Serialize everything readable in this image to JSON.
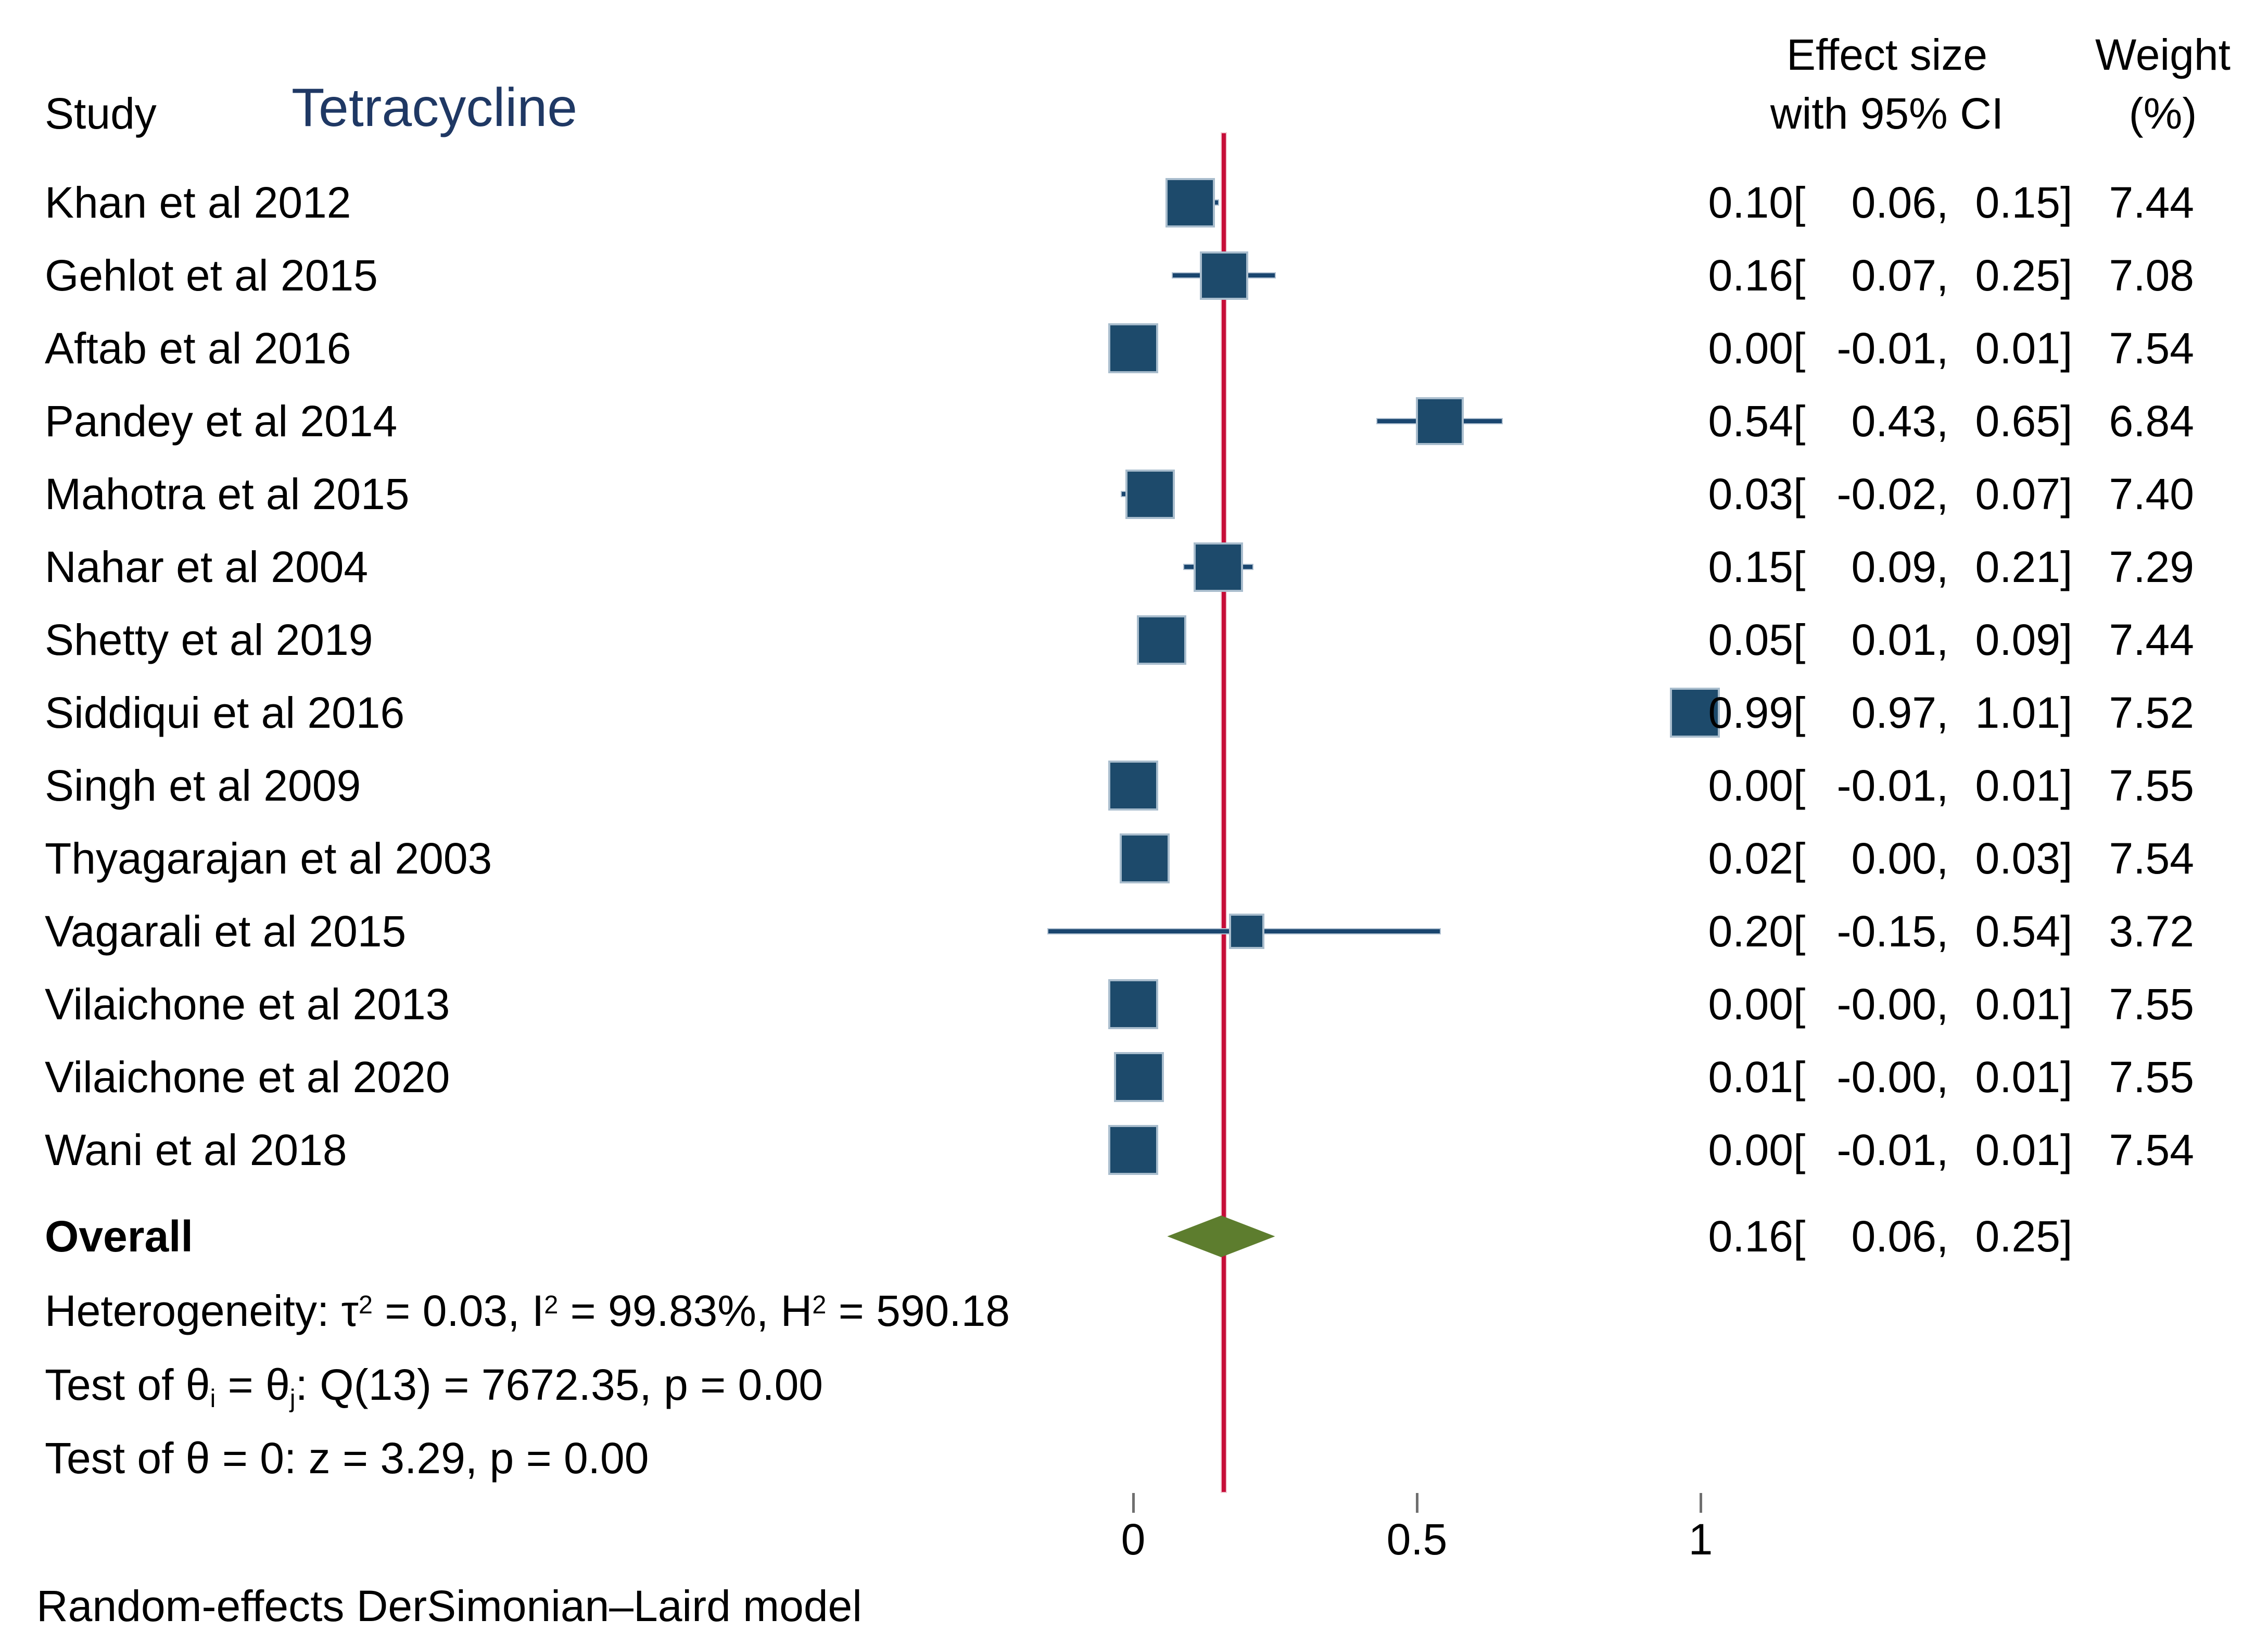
{
  "header": {
    "study_col": "Study",
    "group_title": "Tetracycline",
    "effect_col_line1": "Effect size",
    "effect_col_line2": "with 95% CI",
    "weight_col_line1": "Weight",
    "weight_col_line2": "(%)"
  },
  "chart_data": {
    "type": "forest",
    "title": "Tetracycline",
    "x_axis": {
      "ticks": [
        0,
        0.5,
        1
      ],
      "tick_labels": [
        "0",
        "0.5",
        "1"
      ],
      "range_shown": [
        -0.15,
        1.01
      ],
      "grid": false
    },
    "reference_line_value": 0.16,
    "studies": [
      {
        "label": "Khan et al 2012",
        "es": 0.1,
        "lo": 0.06,
        "hi": 0.15,
        "weight": 7.44,
        "es_str": "0.10",
        "lo_str": "0.06",
        "hi_str": "0.15",
        "weight_str": "7.44"
      },
      {
        "label": "Gehlot et al 2015",
        "es": 0.16,
        "lo": 0.07,
        "hi": 0.25,
        "weight": 7.08,
        "es_str": "0.16",
        "lo_str": "0.07",
        "hi_str": "0.25",
        "weight_str": "7.08"
      },
      {
        "label": "Aftab et al 2016",
        "es": 0.0,
        "lo": -0.01,
        "hi": 0.01,
        "weight": 7.54,
        "es_str": "0.00",
        "lo_str": "-0.01",
        "hi_str": "0.01",
        "weight_str": "7.54"
      },
      {
        "label": "Pandey et al 2014",
        "es": 0.54,
        "lo": 0.43,
        "hi": 0.65,
        "weight": 6.84,
        "es_str": "0.54",
        "lo_str": "0.43",
        "hi_str": "0.65",
        "weight_str": "6.84"
      },
      {
        "label": "Mahotra et al 2015",
        "es": 0.03,
        "lo": -0.02,
        "hi": 0.07,
        "weight": 7.4,
        "es_str": "0.03",
        "lo_str": "-0.02",
        "hi_str": "0.07",
        "weight_str": "7.40"
      },
      {
        "label": "Nahar et al 2004",
        "es": 0.15,
        "lo": 0.09,
        "hi": 0.21,
        "weight": 7.29,
        "es_str": "0.15",
        "lo_str": "0.09",
        "hi_str": "0.21",
        "weight_str": "7.29"
      },
      {
        "label": "Shetty et al 2019",
        "es": 0.05,
        "lo": 0.01,
        "hi": 0.09,
        "weight": 7.44,
        "es_str": "0.05",
        "lo_str": "0.01",
        "hi_str": "0.09",
        "weight_str": "7.44"
      },
      {
        "label": "Siddiqui et al 2016",
        "es": 0.99,
        "lo": 0.97,
        "hi": 1.01,
        "weight": 7.52,
        "es_str": "0.99",
        "lo_str": "0.97",
        "hi_str": "1.01",
        "weight_str": "7.52"
      },
      {
        "label": "Singh et al 2009",
        "es": 0.0,
        "lo": -0.01,
        "hi": 0.01,
        "weight": 7.55,
        "es_str": "0.00",
        "lo_str": "-0.01",
        "hi_str": "0.01",
        "weight_str": "7.55"
      },
      {
        "label": "Thyagarajan et al 2003",
        "es": 0.02,
        "lo": 0.0,
        "hi": 0.03,
        "weight": 7.54,
        "es_str": "0.02",
        "lo_str": "0.00",
        "hi_str": "0.03",
        "weight_str": "7.54"
      },
      {
        "label": "Vagarali et al 2015",
        "es": 0.2,
        "lo": -0.15,
        "hi": 0.54,
        "weight": 3.72,
        "es_str": "0.20",
        "lo_str": "-0.15",
        "hi_str": "0.54",
        "weight_str": "3.72"
      },
      {
        "label": "Vilaichone et al 2013",
        "es": 0.0,
        "lo": -0.004,
        "hi": 0.01,
        "weight": 7.55,
        "es_str": "0.00",
        "lo_str": "-0.00",
        "hi_str": "0.01",
        "weight_str": "7.55"
      },
      {
        "label": "Vilaichone et al 2020",
        "es": 0.01,
        "lo": -0.004,
        "hi": 0.01,
        "weight": 7.55,
        "es_str": "0.01",
        "lo_str": "-0.00",
        "hi_str": "0.01",
        "weight_str": "7.55"
      },
      {
        "label": "Wani et al 2018",
        "es": 0.0,
        "lo": -0.01,
        "hi": 0.01,
        "weight": 7.54,
        "es_str": "0.00",
        "lo_str": "-0.01",
        "hi_str": "0.01",
        "weight_str": "7.54"
      }
    ],
    "overall": {
      "label": "Overall",
      "es": 0.16,
      "lo": 0.06,
      "hi": 0.25,
      "es_str": "0.16",
      "lo_str": "0.06",
      "hi_str": "0.25"
    }
  },
  "stats": {
    "heterogeneity_segments": [
      [
        "Heterogeneity: τ",
        "n"
      ],
      [
        "2",
        "sup"
      ],
      [
        " = 0.03, I",
        "n"
      ],
      [
        "2",
        "sup"
      ],
      [
        " = 99.83%, H",
        "n"
      ],
      [
        "2",
        "sup"
      ],
      [
        " = 590.18",
        "n"
      ]
    ],
    "test_between_segments": [
      [
        "Test of θ",
        "n"
      ],
      [
        "i",
        "sub"
      ],
      [
        " = θ",
        "n"
      ],
      [
        "j",
        "sub"
      ],
      [
        ": Q(13) = 7672.35, p = 0.00",
        "n"
      ]
    ],
    "test_zero_segments": [
      [
        "Test of θ = 0: z = 3.29, p = 0.00",
        "n"
      ]
    ]
  },
  "footer": {
    "model_note": "Random-effects DerSimonian–Laird model"
  },
  "colors": {
    "marker_fill": "#1d4a6b",
    "marker_edge": "#a9bdcd",
    "ci_line": "#1a466f",
    "ci_halo": "#aebfd0",
    "reference_line": "#c60d38",
    "diamond_fill": "#5d7d2e",
    "title_navy": "#1f3864",
    "rule_black": "#000000",
    "rule_gray": "#b3b3b3",
    "tick_gray": "#6f6f6f",
    "text": "#000000"
  }
}
